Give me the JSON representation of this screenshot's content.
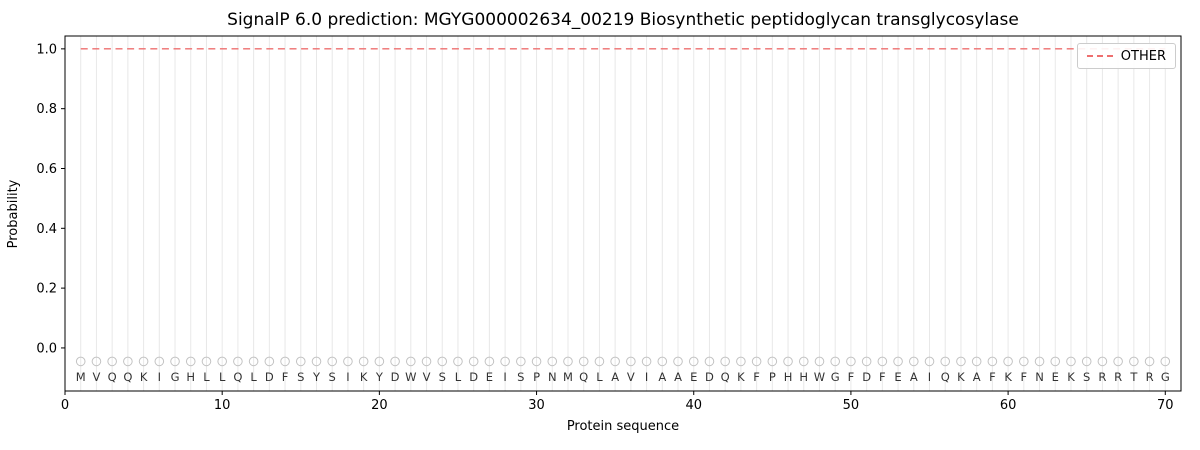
{
  "chart_data": {
    "type": "line",
    "title": "SignalP 6.0 prediction: MGYG000002634_00219 Biosynthetic peptidoglycan transglycosylase",
    "xlabel": "Protein sequence",
    "ylabel": "Probability",
    "x_ticks": [
      0,
      10,
      20,
      30,
      40,
      50,
      60,
      70
    ],
    "y_ticks": [
      0.0,
      0.2,
      0.4,
      0.6,
      0.8,
      1.0
    ],
    "xlim": [
      0,
      71
    ],
    "ylim": [
      -0.144,
      1.043
    ],
    "grid": "vertical gridline at every residue position",
    "sequence": "MVQQKIGHLLQLDFSYSIKYDWVSLDEISPNMQLAVIAAEDQKFPHHWGFDFEAIQKAFKFNEKSRRTRG",
    "n_residues": 70,
    "series": [
      {
        "name": "OTHER",
        "style": "dashed",
        "color": "#ee6f6f",
        "value": 1.0,
        "note": "constant probability 1.0 across all 70 residue positions"
      }
    ],
    "marker_row": {
      "y": -0.045,
      "marker": "open-circle",
      "color": "#c2c2c2"
    },
    "legend": {
      "position": "upper right",
      "entries": [
        {
          "label": "OTHER",
          "color": "#ee6f6f",
          "style": "dashed"
        }
      ]
    },
    "colors": {
      "gridline": "#e8e8e8",
      "spine": "#000000",
      "text": "#000000",
      "letters": "#333333"
    }
  }
}
